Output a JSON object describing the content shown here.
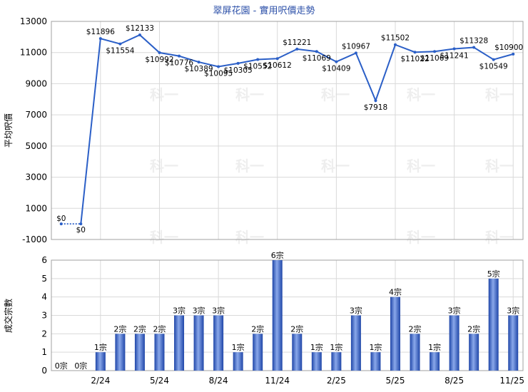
{
  "chart_data": [
    {
      "type": "line",
      "title": "翠屏花園 - 實用呎價走勢",
      "ylabel": "平均呎價",
      "ylim": [
        -1000,
        13000
      ],
      "yticks": [
        -1000,
        1000,
        3000,
        5000,
        7000,
        9000,
        11000,
        13000
      ],
      "grid": true,
      "series": [
        {
          "values": [
            11896,
            11554,
            12133,
            10992,
            10776,
            10389,
            10095,
            10305,
            10552,
            10612,
            11221,
            11069,
            10409,
            10967,
            7918,
            11502,
            11022,
            11069,
            11241,
            11328,
            10549,
            10900
          ],
          "labels": [
            "$11896",
            "$11554",
            "$12133",
            "$10992",
            "$10776",
            "$10389",
            "$10095",
            "$10305",
            "$10552",
            "$10612",
            "$11221",
            "$11069",
            "$10409",
            "$10967",
            "$7918",
            "$11502",
            "$11022",
            "$11069",
            "$11241",
            "$11328",
            "$10549",
            "$10900"
          ],
          "color": "#2b5fc7"
        },
        {
          "values": [
            0,
            0
          ],
          "labels": [
            "$0",
            "$0"
          ],
          "style": "dotted",
          "color": "#2b5fc7"
        }
      ]
    },
    {
      "type": "bar",
      "ylabel": "成交宗數",
      "ylim": [
        0,
        6
      ],
      "yticks": [
        0,
        1,
        2,
        3,
        4,
        5,
        6
      ],
      "x_tick_labels": [
        "2/24",
        "5/24",
        "8/24",
        "11/24",
        "2/25",
        "5/25",
        "8/25",
        "11/25"
      ],
      "values": [
        0,
        0,
        1,
        2,
        2,
        2,
        3,
        3,
        3,
        1,
        2,
        6,
        2,
        1,
        1,
        3,
        1,
        4,
        2,
        1,
        3,
        2,
        5,
        3
      ],
      "labels": [
        "0宗",
        "0宗",
        "1宗",
        "2宗",
        "2宗",
        "2宗",
        "3宗",
        "3宗",
        "3宗",
        "1宗",
        "2宗",
        "6宗",
        "2宗",
        "1宗",
        "1宗",
        "3宗",
        "1宗",
        "4宗",
        "2宗",
        "1宗",
        "3宗",
        "2宗",
        "5宗",
        "3宗"
      ],
      "color": "#3a64c8"
    }
  ]
}
